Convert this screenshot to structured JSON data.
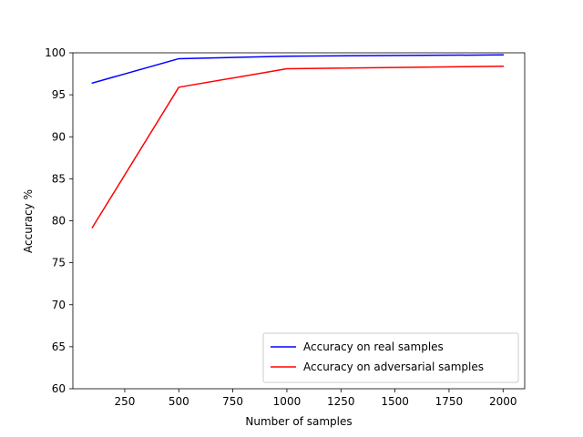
{
  "chart_data": {
    "type": "line",
    "xlabel": "Number of samples",
    "ylabel": "Accuracy %",
    "xlim": [
      10,
      2100
    ],
    "ylim": [
      60,
      100
    ],
    "xticks": [
      250,
      500,
      750,
      1000,
      1250,
      1500,
      1750,
      2000
    ],
    "yticks": [
      60,
      65,
      70,
      75,
      80,
      85,
      90,
      95,
      100
    ],
    "grid": false,
    "legend_position": "lower-right",
    "series": [
      {
        "name": "Accuracy on real samples",
        "color": "#0000ff",
        "x": [
          100,
          500,
          1000,
          2000
        ],
        "y": [
          96.4,
          99.3,
          99.6,
          99.75
        ]
      },
      {
        "name": "Accuracy on adversarial samples",
        "color": "#ff0000",
        "x": [
          100,
          500,
          1000,
          2000
        ],
        "y": [
          79.2,
          95.9,
          98.1,
          98.4
        ]
      }
    ]
  }
}
